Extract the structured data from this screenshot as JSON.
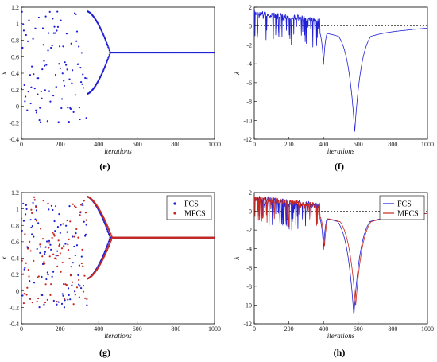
{
  "colors": {
    "fcs": "#1f1fd6",
    "mfcs": "#c8281e",
    "baseline": "#000000"
  },
  "chart_data": [
    {
      "panel_label": "(e)",
      "type": "scatter",
      "xlabel": "iterations",
      "ylabel": "x",
      "xlim": [
        0,
        1000
      ],
      "ylim": [
        -0.4,
        1.2
      ],
      "xticks": [
        "0",
        "200",
        "400",
        "600",
        "800",
        "1000"
      ],
      "yticks": [
        "-0.4",
        "-0.2",
        "0",
        "0.2",
        "0.4",
        "0.6",
        "0.8",
        "1",
        "1.2"
      ],
      "legend": null,
      "series": [
        {
          "color": "fcs",
          "behavior": "chaotic 0-350, period-2 branches 1.15 and 0.15 merging at ~460",
          "fixed_point": 0.65,
          "scatter_range": [
            -0.2,
            1.15
          ],
          "split_end": 460
        }
      ]
    },
    {
      "panel_label": "(f)",
      "type": "line",
      "xlabel": "iterations",
      "ylabel": "λ",
      "xlim": [
        0,
        1000
      ],
      "ylim": [
        -12,
        2
      ],
      "xticks": [
        "0",
        "200",
        "400",
        "600",
        "800",
        "1000"
      ],
      "yticks": [
        "-12",
        "-10",
        "-8",
        "-6",
        "-4",
        "-2",
        "0",
        "2"
      ],
      "baseline": 0,
      "legend": null,
      "series": [
        {
          "color": "fcs",
          "dips": [
            [
              400,
              -4.1
            ],
            [
              580,
              -11.2
            ]
          ],
          "final": -0.05
        }
      ]
    },
    {
      "panel_label": "(g)",
      "type": "scatter",
      "xlabel": "iterations",
      "ylabel": "x",
      "xlim": [
        0,
        1000
      ],
      "ylim": [
        -0.4,
        1.2
      ],
      "xticks": [
        "0",
        "200",
        "400",
        "600",
        "800",
        "1000"
      ],
      "yticks": [
        "-0.4",
        "-0.2",
        "0",
        "0.2",
        "0.4",
        "0.6",
        "0.8",
        "1",
        "1.2"
      ],
      "legend": [
        "FCS",
        "MFCS"
      ],
      "series": [
        {
          "name": "FCS",
          "color": "fcs",
          "fixed_point": 0.65,
          "scatter_range": [
            -0.2,
            1.15
          ],
          "split_end": 460
        },
        {
          "name": "MFCS",
          "color": "mfcs",
          "fixed_point": 0.65,
          "scatter_range": [
            -0.2,
            1.15
          ],
          "split_end": 470
        }
      ]
    },
    {
      "panel_label": "(h)",
      "type": "line",
      "xlabel": "iterations",
      "ylabel": "λ",
      "xlim": [
        0,
        1000
      ],
      "ylim": [
        -12,
        2
      ],
      "xticks": [
        "0",
        "200",
        "400",
        "600",
        "800",
        "1000"
      ],
      "yticks": [
        "-12",
        "-10",
        "-8",
        "-6",
        "-4",
        "-2",
        "0",
        "2"
      ],
      "baseline": 0,
      "legend": [
        "FCS",
        "MFCS"
      ],
      "series": [
        {
          "name": "FCS",
          "color": "fcs",
          "dips": [
            [
              400,
              -4.1
            ],
            [
              575,
              -11.2
            ]
          ],
          "final": -0.05
        },
        {
          "name": "MFCS",
          "color": "mfcs",
          "dips": [
            [
              405,
              -4.0
            ],
            [
              585,
              -10.2
            ]
          ],
          "final": -0.05
        }
      ]
    }
  ]
}
